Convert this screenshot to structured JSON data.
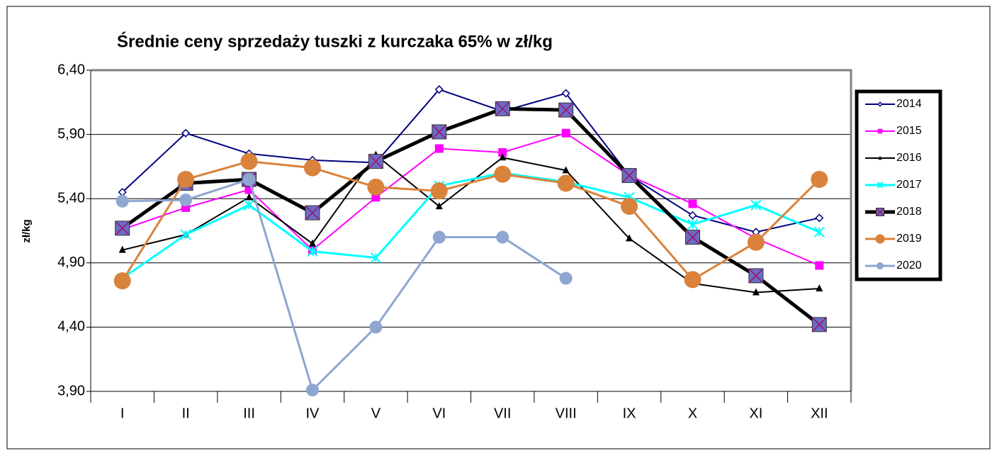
{
  "chart_data": {
    "type": "line",
    "title": "Średnie ceny sprzedaży tuszki z kurczaka 65% w zł/kg",
    "y_label": "zł/kg",
    "categories": [
      "I",
      "II",
      "III",
      "IV",
      "V",
      "VI",
      "VII",
      "VIII",
      "IX",
      "X",
      "XI",
      "XII"
    ],
    "ylim": [
      3.9,
      6.4
    ],
    "yticks": [
      {
        "value": 3.9,
        "label": "3,90"
      },
      {
        "value": 4.4,
        "label": "4,40"
      },
      {
        "value": 4.9,
        "label": "4,90"
      },
      {
        "value": 5.4,
        "label": "5,40"
      },
      {
        "value": 5.9,
        "label": "5,90"
      },
      {
        "value": 6.4,
        "label": "6,40"
      }
    ],
    "grid": true,
    "legend": "right",
    "series": [
      {
        "name": "2014",
        "color": "#000080",
        "marker": "diamond",
        "line_width": 2,
        "values": [
          5.45,
          5.91,
          5.75,
          5.7,
          5.68,
          6.25,
          6.08,
          6.22,
          5.58,
          5.27,
          5.14,
          5.25
        ]
      },
      {
        "name": "2015",
        "color": "#ff00ff",
        "marker": "square",
        "line_width": 2,
        "values": [
          5.16,
          5.33,
          5.47,
          5.0,
          5.41,
          5.79,
          5.76,
          5.91,
          5.58,
          5.36,
          5.09,
          4.88
        ]
      },
      {
        "name": "2016",
        "color": "#000000",
        "marker": "triangle",
        "line_width": 2,
        "values": [
          5.0,
          5.12,
          5.41,
          5.05,
          5.74,
          5.34,
          5.72,
          5.62,
          5.09,
          4.74,
          4.67,
          4.7
        ]
      },
      {
        "name": "2017",
        "color": "#00ffff",
        "marker": "star",
        "line_width": 3,
        "values": [
          4.78,
          5.12,
          5.35,
          4.99,
          4.94,
          5.5,
          5.6,
          5.53,
          5.41,
          5.2,
          5.35,
          5.14
        ]
      },
      {
        "name": "2018",
        "color": "#000000",
        "marker_color": "#6b6bc8",
        "marker": "boxx",
        "line_width": 5,
        "values": [
          5.17,
          5.52,
          5.55,
          5.29,
          5.69,
          5.92,
          6.1,
          6.09,
          5.58,
          5.1,
          4.8,
          4.42
        ]
      },
      {
        "name": "2019",
        "color": "#d9823b",
        "marker": "circle",
        "line_width": 3,
        "values": [
          4.76,
          5.55,
          5.69,
          5.64,
          5.49,
          5.46,
          5.59,
          5.52,
          5.34,
          4.77,
          5.06,
          5.55
        ]
      },
      {
        "name": "2020",
        "color": "#8ea6d0",
        "marker": "dot",
        "line_width": 3,
        "values": [
          5.38,
          5.39,
          5.55,
          3.91,
          4.4,
          5.1,
          5.1,
          4.78,
          null,
          null,
          null,
          null
        ]
      }
    ]
  }
}
